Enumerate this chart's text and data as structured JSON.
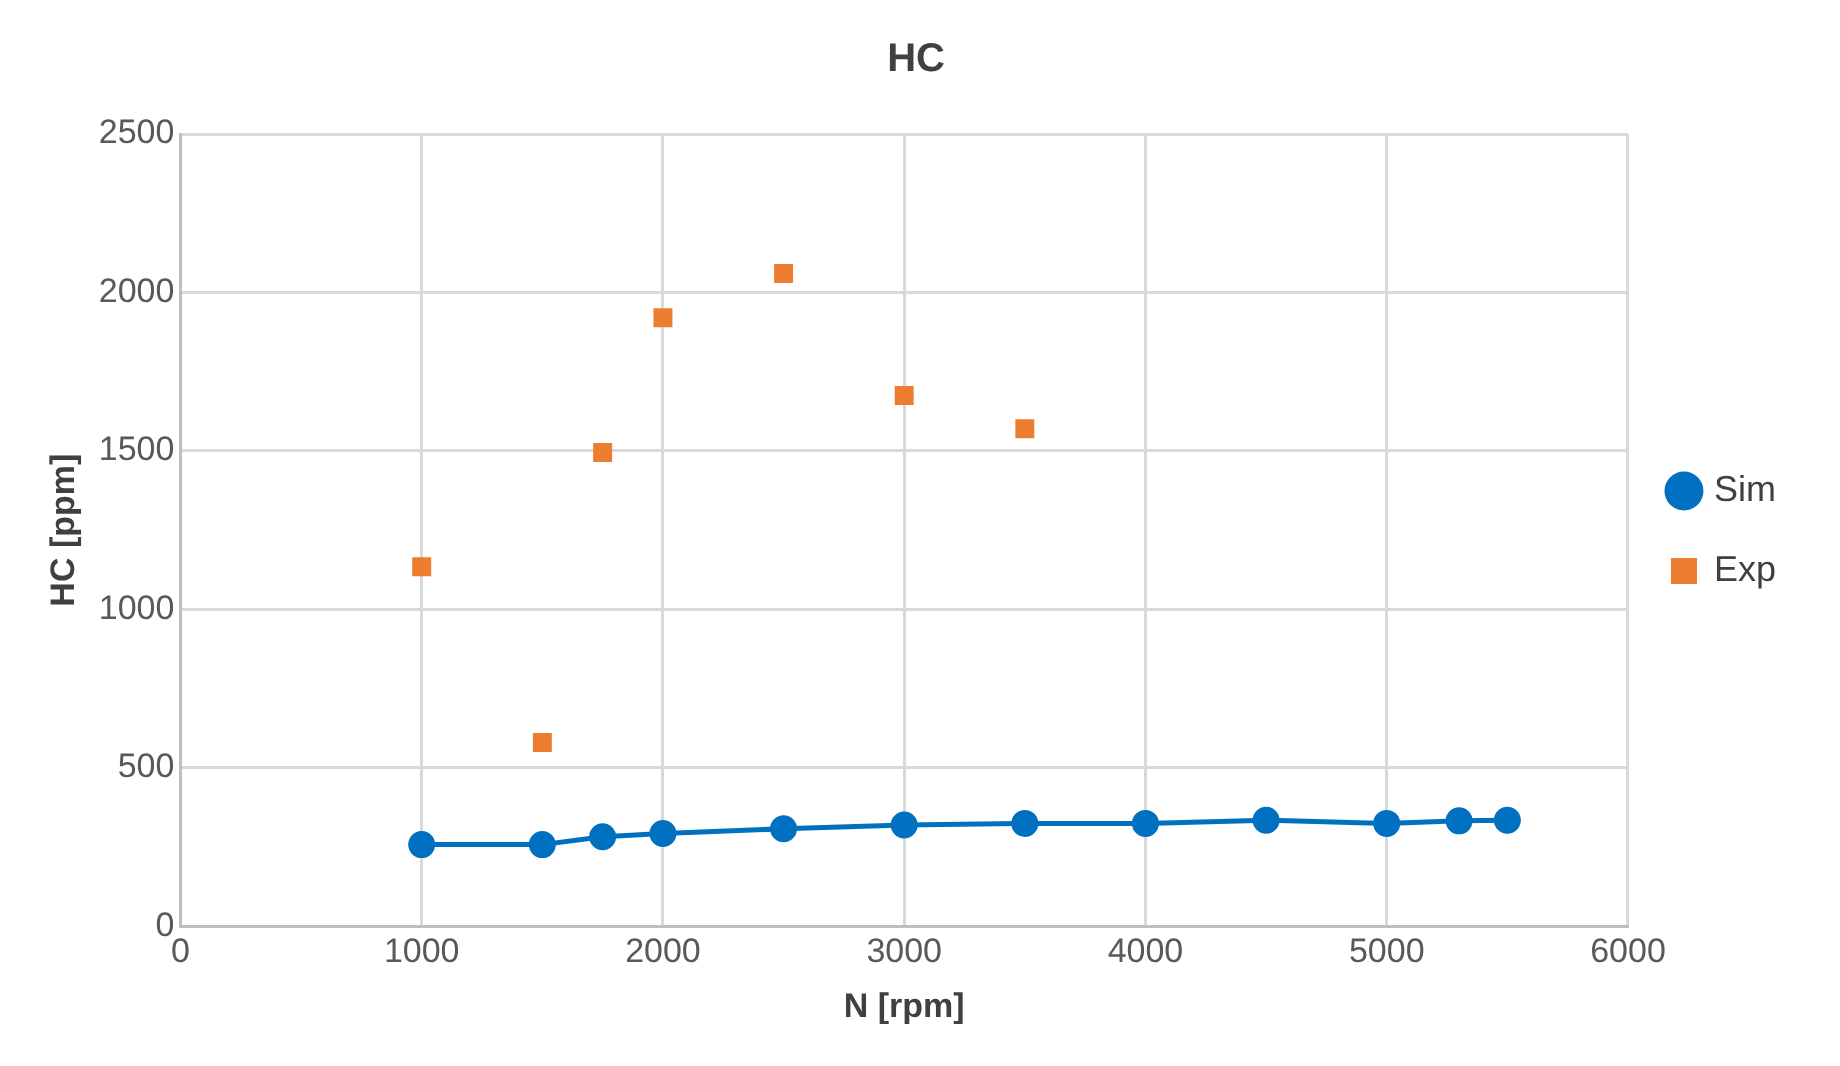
{
  "chart_data": {
    "type": "line",
    "title": "HC",
    "xlabel": "N [rpm]",
    "ylabel": "HC [ppm]",
    "xlim": [
      0,
      6000
    ],
    "xticks": [
      0,
      1000,
      2000,
      3000,
      4000,
      5000,
      6000
    ],
    "ylim": [
      0,
      2500
    ],
    "yticks": [
      0,
      500,
      1000,
      1500,
      2000,
      2500
    ],
    "grid": true,
    "legend": "right",
    "series": [
      {
        "name": "Sim",
        "marker": "circle",
        "color": "#0070c0",
        "x": [
          1000,
          1500,
          1750,
          2000,
          2500,
          3000,
          3500,
          4000,
          4500,
          5000,
          5300,
          5500
        ],
        "values": [
          258,
          258,
          283,
          293,
          308,
          320,
          325,
          325,
          335,
          325,
          333,
          335
        ]
      },
      {
        "name": "Exp",
        "type": "scatter",
        "marker": "square",
        "color": "#ed7d31",
        "x": [
          1000,
          1500,
          1750,
          2000,
          2500,
          3000,
          3500
        ],
        "values": [
          1135,
          580,
          1495,
          1920,
          2060,
          1675,
          1570
        ]
      }
    ]
  }
}
